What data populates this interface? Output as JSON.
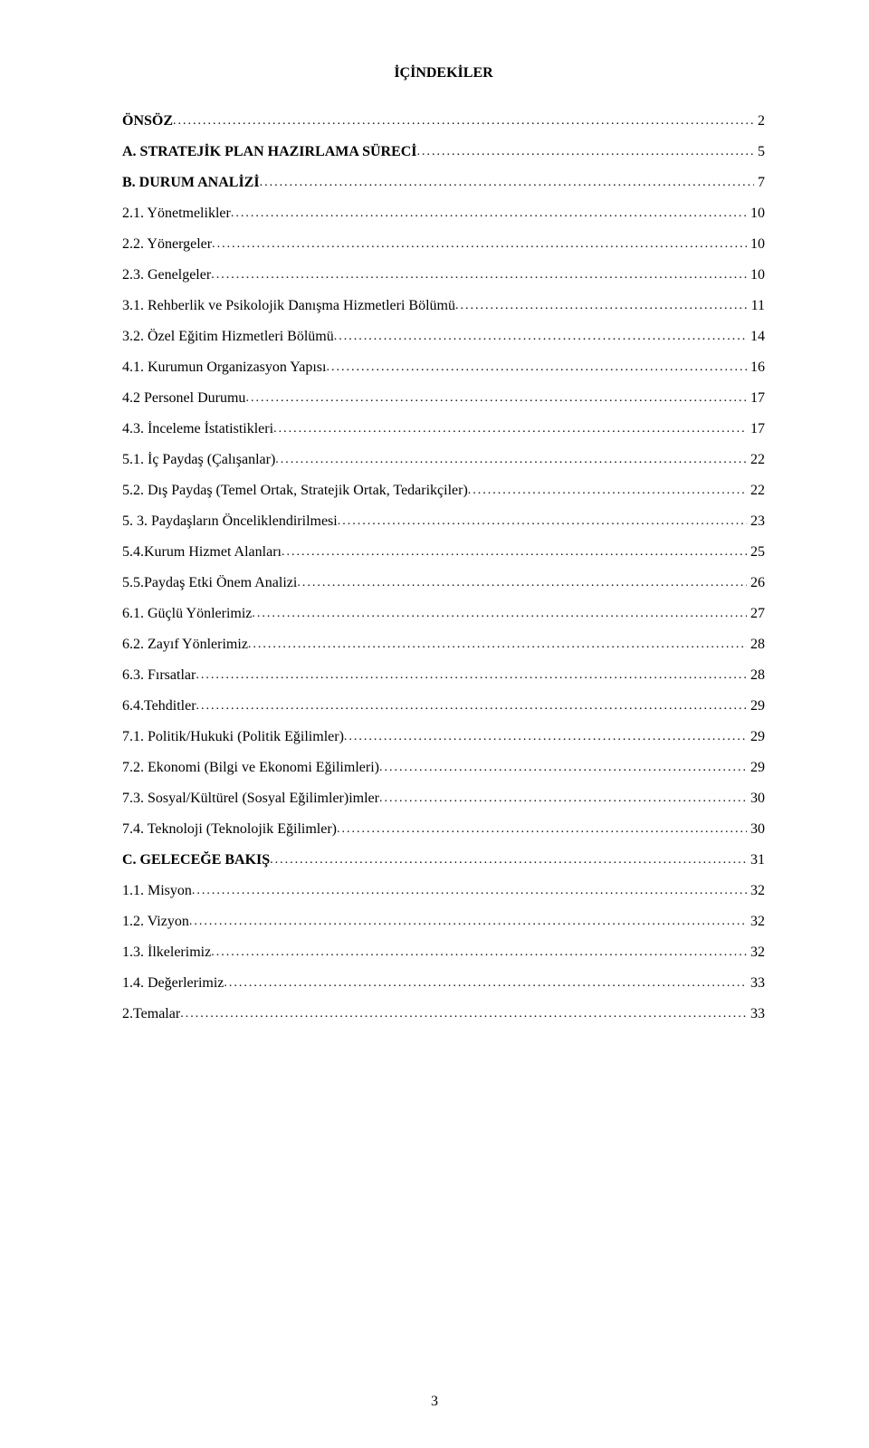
{
  "title": "İÇİNDEKİLER",
  "pageNumber": "3",
  "entries": [
    {
      "label": "ÖNSÖZ",
      "page": "2",
      "bold": true
    },
    {
      "label": "A. STRATEJİK PLAN HAZIRLAMA SÜRECİ",
      "page": "5",
      "bold": true
    },
    {
      "label": "B. DURUM ANALİZİ",
      "page": "7",
      "bold": true
    },
    {
      "label": "2.1. Yönetmelikler",
      "page": "10",
      "bold": false
    },
    {
      "label": "2.2. Yönergeler",
      "page": "10",
      "bold": false
    },
    {
      "label": "2.3. Genelgeler",
      "page": "10",
      "bold": false
    },
    {
      "label": "3.1. Rehberlik ve Psikolojik Danışma Hizmetleri Bölümü",
      "page": "11",
      "bold": false
    },
    {
      "label": "3.2. Özel Eğitim Hizmetleri Bölümü",
      "page": "14",
      "bold": false
    },
    {
      "label": "4.1. Kurumun Organizasyon Yapısı",
      "page": "16",
      "bold": false
    },
    {
      "label": "4.2 Personel Durumu",
      "page": "17",
      "bold": false
    },
    {
      "label": "4.3. İnceleme İstatistikleri",
      "page": "17",
      "bold": false
    },
    {
      "label": "5.1. İç Paydaş (Çalışanlar)",
      "page": "22",
      "bold": false
    },
    {
      "label": "5.2. Dış Paydaş (Temel Ortak, Stratejik Ortak, Tedarikçiler)",
      "page": "22",
      "bold": false
    },
    {
      "label": "5. 3. Paydaşların Önceliklendirilmesi",
      "page": "23",
      "bold": false
    },
    {
      "label": "5.4.Kurum Hizmet Alanları",
      "page": "25",
      "bold": false
    },
    {
      "label": "5.5.Paydaş Etki Önem Analizi",
      "page": "26",
      "bold": false
    },
    {
      "label": "6.1. Güçlü Yönlerimiz",
      "page": "27",
      "bold": false
    },
    {
      "label": "6.2. Zayıf Yönlerimiz",
      "page": "28",
      "bold": false
    },
    {
      "label": "6.3. Fırsatlar",
      "page": "28",
      "bold": false
    },
    {
      "label": "6.4.Tehditler",
      "page": "29",
      "bold": false
    },
    {
      "label": "7.1. Politik/Hukuki (Politik Eğilimler)",
      "page": "29",
      "bold": false
    },
    {
      "label": "7.2. Ekonomi (Bilgi ve Ekonomi Eğilimleri)",
      "page": "29",
      "bold": false
    },
    {
      "label": "7.3. Sosyal/Kültürel (Sosyal Eğilimler)imler",
      "page": "30",
      "bold": false
    },
    {
      "label": "7.4. Teknoloji (Teknolojik Eğilimler)",
      "page": "30",
      "bold": false
    },
    {
      "label": "C. GELECEĞE BAKIŞ",
      "page": "31",
      "bold": true
    },
    {
      "label": "1.1. Misyon",
      "page": "32",
      "bold": false
    },
    {
      "label": "1.2. Vizyon",
      "page": "32",
      "bold": false
    },
    {
      "label": "1.3. İlkelerimiz",
      "page": "32",
      "bold": false
    },
    {
      "label": "1.4. Değerlerimiz",
      "page": "33",
      "bold": false
    },
    {
      "label": "2.Temalar",
      "page": "33",
      "bold": false
    }
  ]
}
